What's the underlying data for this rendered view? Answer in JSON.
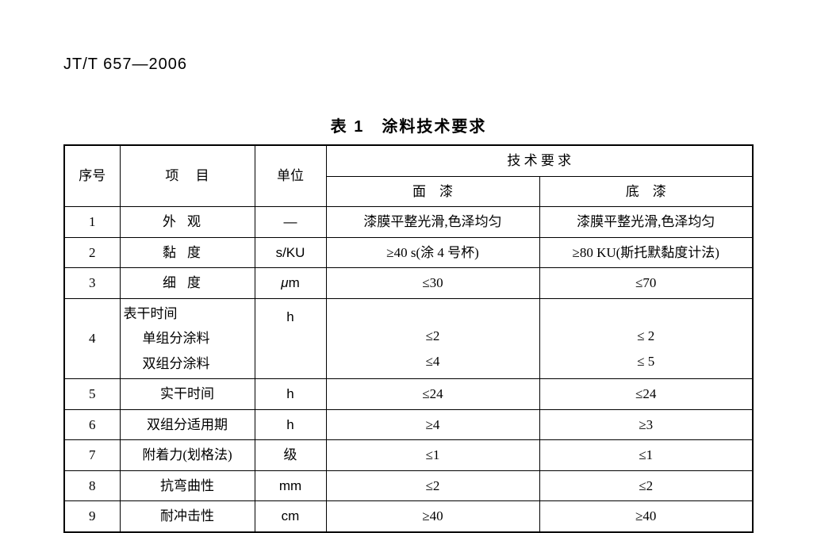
{
  "doc_id": "JT/T 657—2006",
  "caption_number": "表 1",
  "caption_title": "涂料技术要求",
  "header": {
    "seq": "序号",
    "item_a": "项",
    "item_b": "目",
    "unit": "单位",
    "req_group": "技 术 要 求",
    "req_top": "面　漆",
    "req_base": "底　漆"
  },
  "rows": [
    {
      "seq": "1",
      "item": "外观",
      "item_spaced": true,
      "unit": "—",
      "top": "漆膜平整光滑,色泽均匀",
      "base": "漆膜平整光滑,色泽均匀"
    },
    {
      "seq": "2",
      "item": "黏度",
      "item_spaced": true,
      "unit": "s/KU",
      "top": "≥40 s(涂 4 号杯)",
      "base": "≥80 KU(斯托默黏度计法)"
    },
    {
      "seq": "3",
      "item": "细度",
      "item_spaced": true,
      "unit": "μm",
      "unit_italic": true,
      "top": "≤30",
      "base": "≤70"
    },
    {
      "seq": "4",
      "multi": true,
      "item_main": "表干时间",
      "item_sub1": "单组分涂料",
      "item_sub2": "双组分涂料",
      "unit": "h",
      "unit_top_align": true,
      "top1": "≤2",
      "top2": "≤4",
      "base1": "≤ 2",
      "base2": "≤ 5"
    },
    {
      "seq": "5",
      "item": "实干时间",
      "unit": "h",
      "top": "≤24",
      "base": "≤24"
    },
    {
      "seq": "6",
      "item": "双组分适用期",
      "unit": "h",
      "top": "≥4",
      "base": "≥3"
    },
    {
      "seq": "7",
      "item": "附着力(划格法)",
      "unit": "级",
      "top": "≤1",
      "base": "≤1"
    },
    {
      "seq": "8",
      "item": "抗弯曲性",
      "unit": "mm",
      "top": "≤2",
      "base": "≤2"
    },
    {
      "seq": "9",
      "item": "耐冲击性",
      "unit": "cm",
      "top": "≥40",
      "base": "≥40"
    }
  ]
}
